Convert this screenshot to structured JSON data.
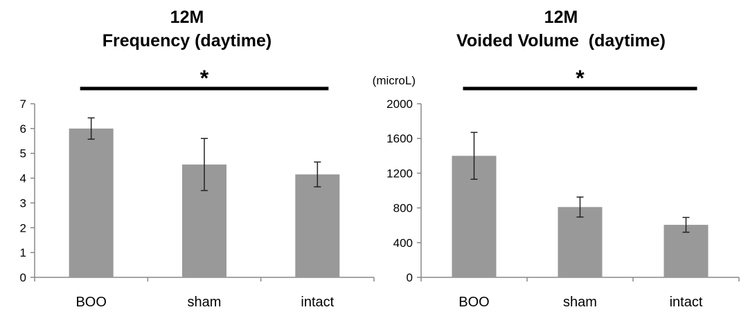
{
  "chart_data": [
    {
      "type": "bar",
      "title_line1": "12M",
      "title_line2": "Frequency (daytime)",
      "unit_label": "",
      "categories": [
        "BOO",
        "sham",
        "intact"
      ],
      "values": [
        6.0,
        4.55,
        4.15
      ],
      "error": [
        0.43,
        1.05,
        0.5
      ],
      "ylim": [
        0,
        7
      ],
      "yticks": [
        0,
        1,
        2,
        3,
        4,
        5,
        6,
        7
      ],
      "significance": {
        "from": "BOO",
        "to": "intact",
        "mark": "*"
      },
      "bar_color": "#999999",
      "grid": false
    },
    {
      "type": "bar",
      "title_line1": "12M",
      "title_line2": "Voided Volume  (daytime)",
      "unit_label": "(microL)",
      "categories": [
        "BOO",
        "sham",
        "intact"
      ],
      "values": [
        1400,
        810,
        605
      ],
      "error": [
        270,
        115,
        85
      ],
      "ylim": [
        0,
        2000
      ],
      "yticks": [
        0,
        400,
        800,
        1200,
        1600,
        2000
      ],
      "significance": {
        "from": "BOO",
        "to": "intact",
        "mark": "*"
      },
      "bar_color": "#999999",
      "grid": false
    }
  ]
}
